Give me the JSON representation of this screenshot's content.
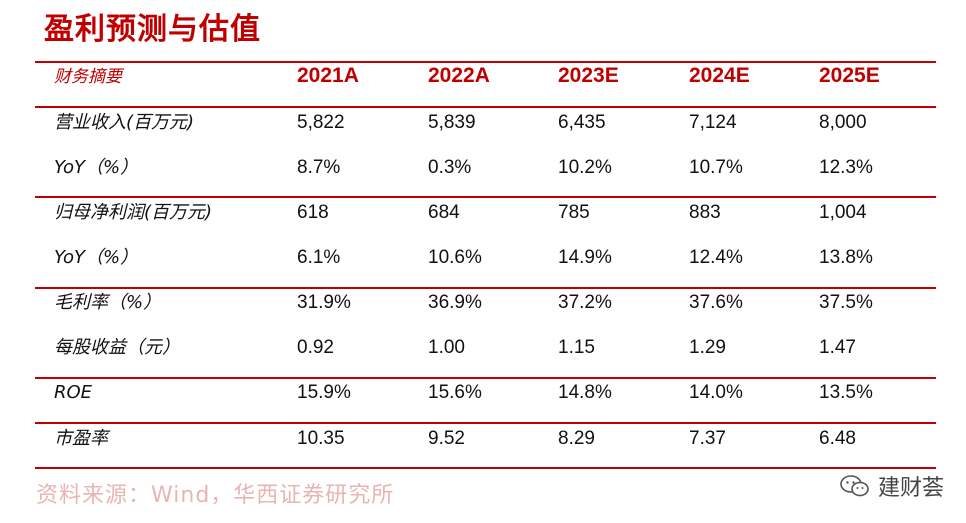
{
  "title": "盈利预测与估值",
  "header": {
    "label": "财务摘要",
    "years": [
      "2021A",
      "2022A",
      "2023E",
      "2024E",
      "2025E"
    ]
  },
  "rows": [
    {
      "label": "营业收入(百万元)",
      "values": [
        "5,822",
        "5,839",
        "6,435",
        "7,124",
        "8,000"
      ]
    },
    {
      "label": "YoY（%）",
      "values": [
        "8.7%",
        "0.3%",
        "10.2%",
        "10.7%",
        "12.3%"
      ]
    },
    {
      "label": "归母净利润(百万元)",
      "values": [
        "618",
        "684",
        "785",
        "883",
        "1,004"
      ]
    },
    {
      "label": "YoY（%）",
      "values": [
        "6.1%",
        "10.6%",
        "14.9%",
        "12.4%",
        "13.8%"
      ]
    },
    {
      "label": "毛利率（%）",
      "values": [
        "31.9%",
        "36.9%",
        "37.2%",
        "37.6%",
        "37.5%"
      ]
    },
    {
      "label": "每股收益（元）",
      "values": [
        "0.92",
        "1.00",
        "1.15",
        "1.29",
        "1.47"
      ]
    },
    {
      "label": "ROE",
      "values": [
        "15.9%",
        "15.6%",
        "14.8%",
        "14.0%",
        "13.5%"
      ]
    },
    {
      "label": "市盈率",
      "values": [
        "10.35",
        "9.52",
        "8.29",
        "7.37",
        "6.48"
      ]
    }
  ],
  "source": "资料来源：Wind，华西证券研究所",
  "watermark": {
    "icon": "wechat-icon",
    "text": "建财荟"
  },
  "colors": {
    "accent": "#c00000",
    "source_text": "#e8b4b4"
  }
}
